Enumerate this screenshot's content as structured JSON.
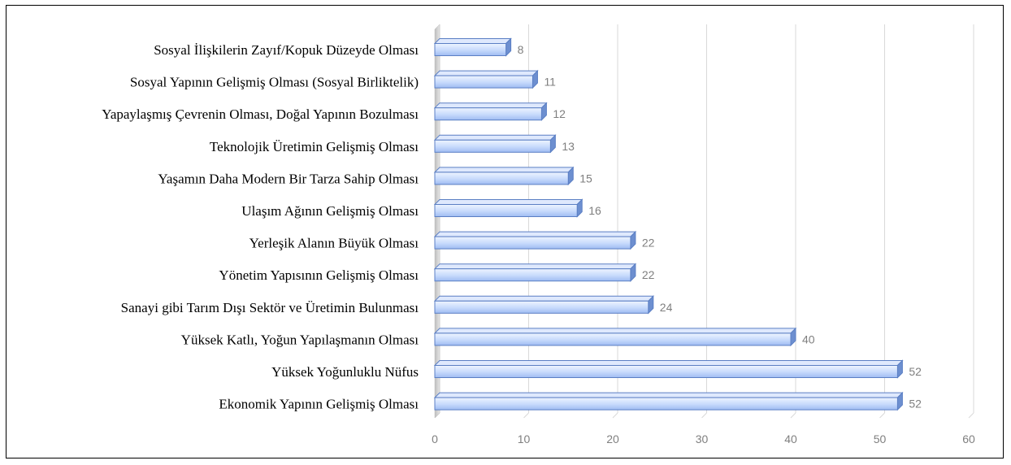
{
  "chart_data": {
    "type": "bar",
    "orientation": "horizontal",
    "style": "3d-clustered",
    "title": "",
    "xlabel": "",
    "ylabel": "",
    "categories": [
      "Sosyal İlişkilerin Zayıf/Kopuk Düzeyde Olması",
      "Sosyal Yapının Gelişmiş Olması (Sosyal Birliktelik)",
      "Yapaylaşmış Çevrenin Olması, Doğal Yapının Bozulması",
      "Teknolojik Üretimin Gelişmiş Olması",
      "Yaşamın Daha Modern Bir Tarza Sahip Olması",
      "Ulaşım Ağının Gelişmiş Olması",
      "Yerleşik Alanın Büyük Olması",
      "Yönetim Yapısının Gelişmiş Olması",
      "Sanayi gibi Tarım Dışı Sektör ve Üretimin Bulunması",
      "Yüksek Katlı, Yoğun Yapılaşmanın Olması",
      "Yüksek Yoğunluklu Nüfus",
      "Ekonomik Yapının Gelişmiş Olması"
    ],
    "values": [
      8,
      11,
      12,
      13,
      15,
      16,
      22,
      22,
      24,
      40,
      52,
      52
    ],
    "xlim": [
      0,
      60
    ],
    "xticks": [
      0,
      10,
      20,
      30,
      40,
      50,
      60
    ],
    "grid": true,
    "legend": "none",
    "data_labels": true,
    "colors": {
      "bar_light": "#eaf1ff",
      "bar_mid": "#a9c4f5",
      "bar_edge": "#5b7fc4",
      "bar_side": "#6d8fd0",
      "grid": "#d9d9d9",
      "tick_text": "#7f7f7f",
      "value_text": "#7f7f7f",
      "category_text": "#000000"
    }
  }
}
